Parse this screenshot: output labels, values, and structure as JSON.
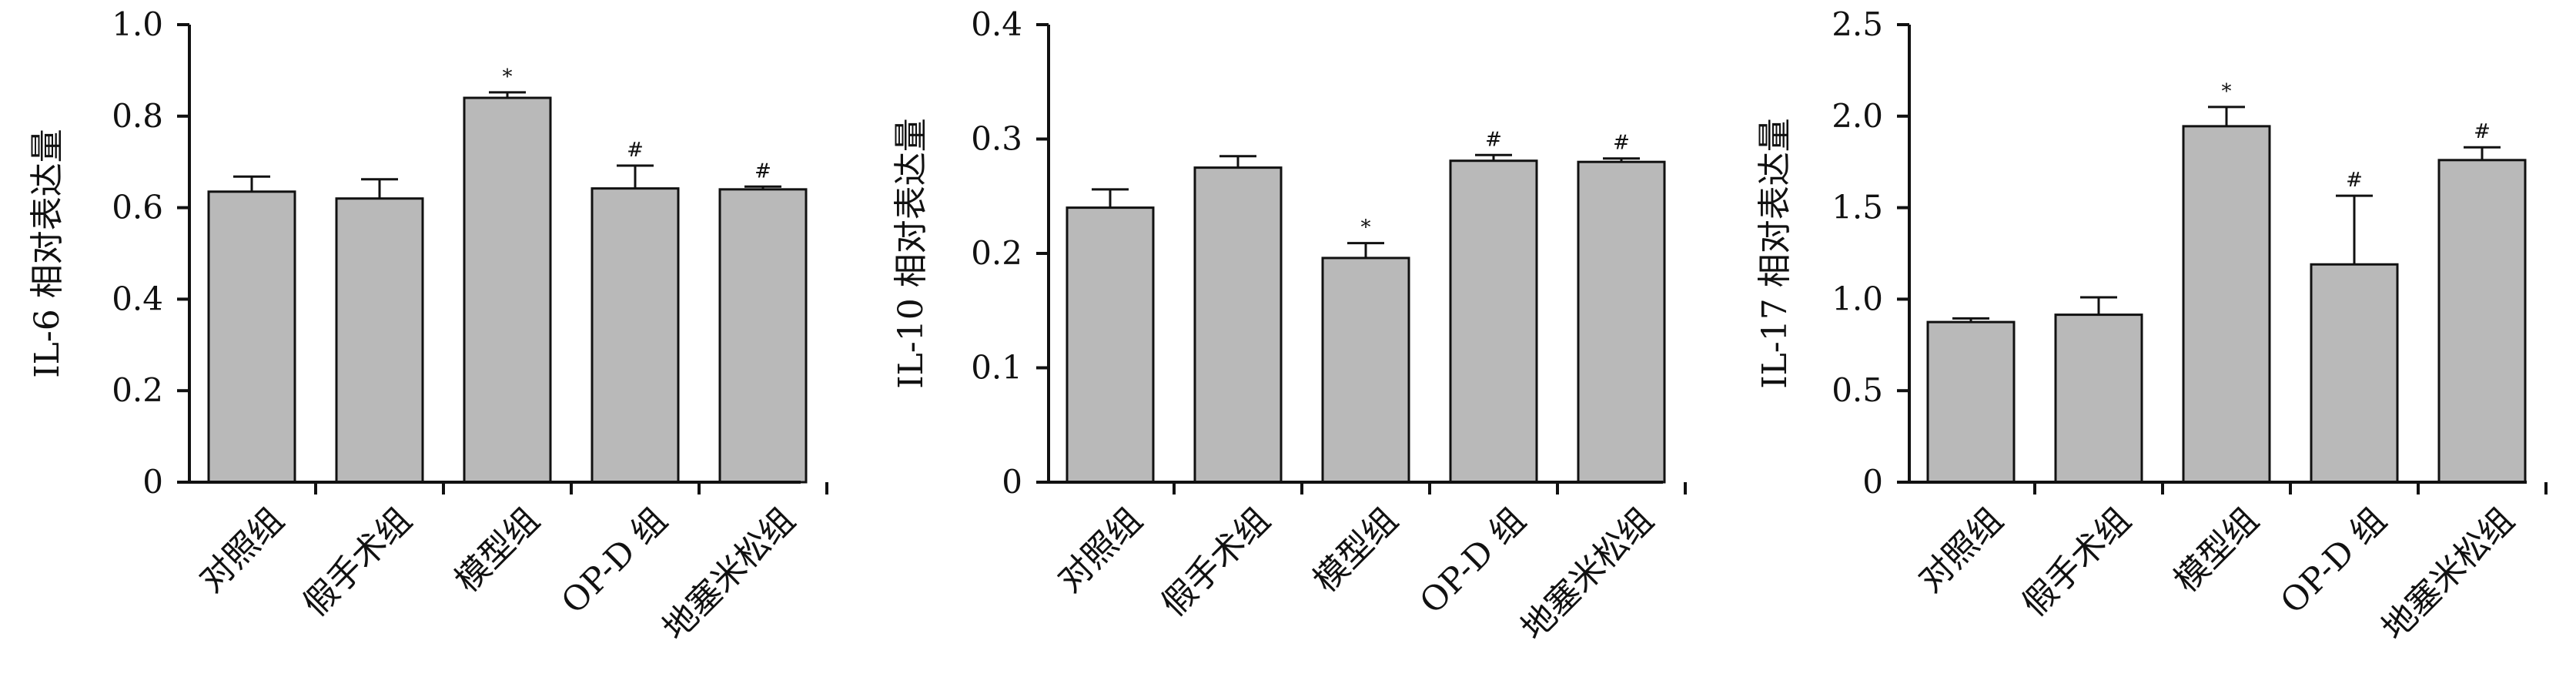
{
  "chart_data": [
    {
      "type": "bar",
      "categories": [
        "对照组",
        "假手术组",
        "模型组",
        "OP-D 组",
        "地塞米松组"
      ],
      "values": [
        0.635,
        0.62,
        0.84,
        0.642,
        0.64
      ],
      "errors": [
        0.033,
        0.042,
        0.012,
        0.05,
        0.006
      ],
      "marks": [
        "",
        "",
        "*",
        "#",
        "#"
      ],
      "ylabel": "IL-6 相对表达量",
      "ylim": [
        0,
        1.0
      ],
      "yticks": [
        0,
        0.2,
        0.4,
        0.6,
        0.8,
        1.0
      ],
      "ytick_labels": [
        "0",
        "0.2",
        "0.4",
        "0.6",
        "0.8",
        "1.0"
      ],
      "grid": false,
      "bar_color": "#b9b9b9"
    },
    {
      "type": "bar",
      "categories": [
        "对照组",
        "假手术组",
        "模型组",
        "OP-D 组",
        "地塞米松组"
      ],
      "values": [
        0.24,
        0.275,
        0.196,
        0.281,
        0.28
      ],
      "errors": [
        0.016,
        0.01,
        0.013,
        0.005,
        0.003
      ],
      "marks": [
        "",
        "",
        "*",
        "#",
        "#"
      ],
      "ylabel": "IL-10 相对表达量",
      "ylim": [
        0,
        0.4
      ],
      "yticks": [
        0,
        0.1,
        0.2,
        0.3,
        0.4
      ],
      "ytick_labels": [
        "0",
        "0.1",
        "0.2",
        "0.3",
        "0.4"
      ],
      "grid": false,
      "bar_color": "#b9b9b9"
    },
    {
      "type": "bar",
      "categories": [
        "对照组",
        "假手术组",
        "模型组",
        "OP-D 组",
        "地塞米松组"
      ],
      "values": [
        0.875,
        0.915,
        1.945,
        1.19,
        1.76
      ],
      "errors": [
        0.02,
        0.095,
        0.105,
        0.375,
        0.07
      ],
      "marks": [
        "",
        "",
        "*",
        "#",
        "#"
      ],
      "ylabel": "IL-17 相对表达量",
      "ylim": [
        0,
        2.5
      ],
      "yticks": [
        0,
        0.5,
        1.0,
        1.5,
        2.0,
        2.5
      ],
      "ytick_labels": [
        "0",
        "0.5",
        "1.0",
        "1.5",
        "2.0",
        "2.5"
      ],
      "grid": false,
      "bar_color": "#b9b9b9"
    }
  ]
}
